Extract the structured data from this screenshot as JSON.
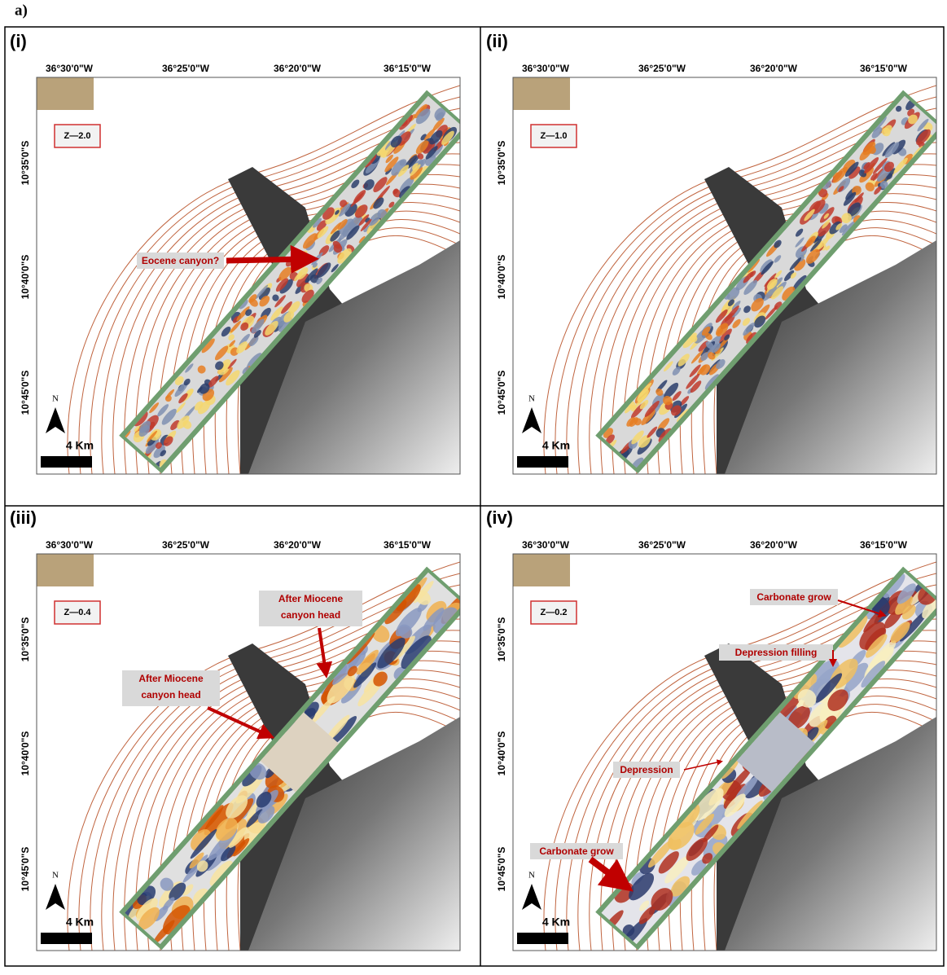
{
  "figure_label": "a)",
  "panels": [
    {
      "label": "(i)",
      "lon_labels": [
        "36°30'0\"W",
        "36°25'0\"W",
        "36°20'0\"W",
        "36°15'0\"W"
      ],
      "lat_labels": [
        "10°35'0\"S",
        "10°40'0\"S",
        "10°45'0\"S"
      ],
      "z_label": "Z—2.0",
      "annotations": [
        {
          "lines": [
            "Eocene canyon?"
          ]
        }
      ],
      "north": "N",
      "scale": "4 Km"
    },
    {
      "label": "(ii)",
      "lon_labels": [
        "36°30'0\"W",
        "36°25'0\"W",
        "36°20'0\"W",
        "36°15'0\"W"
      ],
      "lat_labels": [
        "10°35'0\"S",
        "10°40'0\"S",
        "10°45'0\"S"
      ],
      "z_label": "Z—1.0",
      "annotations": [],
      "north": "N",
      "scale": "4 Km"
    },
    {
      "label": "(iii)",
      "lon_labels": [
        "36°30'0\"W",
        "36°25'0\"W",
        "36°20'0\"W",
        "36°15'0\"W"
      ],
      "lat_labels": [
        "10°35'0\"S",
        "10°40'0\"S",
        "10°45'0\"S"
      ],
      "z_label": "Z—0.4",
      "annotations": [
        {
          "lines": [
            "After Miocene",
            "canyon head"
          ]
        },
        {
          "lines": [
            "After Miocene",
            "canyon head"
          ]
        }
      ],
      "north": "N",
      "scale": "4 Km"
    },
    {
      "label": "(iv)",
      "lon_labels": [
        "36°30'0\"W",
        "36°25'0\"W",
        "36°20'0\"W",
        "36°15'0\"W"
      ],
      "lat_labels": [
        "10°35'0\"S",
        "10°40'0\"S",
        "10°45'0\"S"
      ],
      "z_label": "Z—0.2",
      "annotations": [
        {
          "lines": [
            "Carbonate grow"
          ]
        },
        {
          "lines": [
            "Depression filling"
          ]
        },
        {
          "lines": [
            "Depression"
          ]
        },
        {
          "lines": [
            "Carbonate grow"
          ]
        }
      ],
      "north": "N",
      "scale": "4 Km"
    }
  ]
}
